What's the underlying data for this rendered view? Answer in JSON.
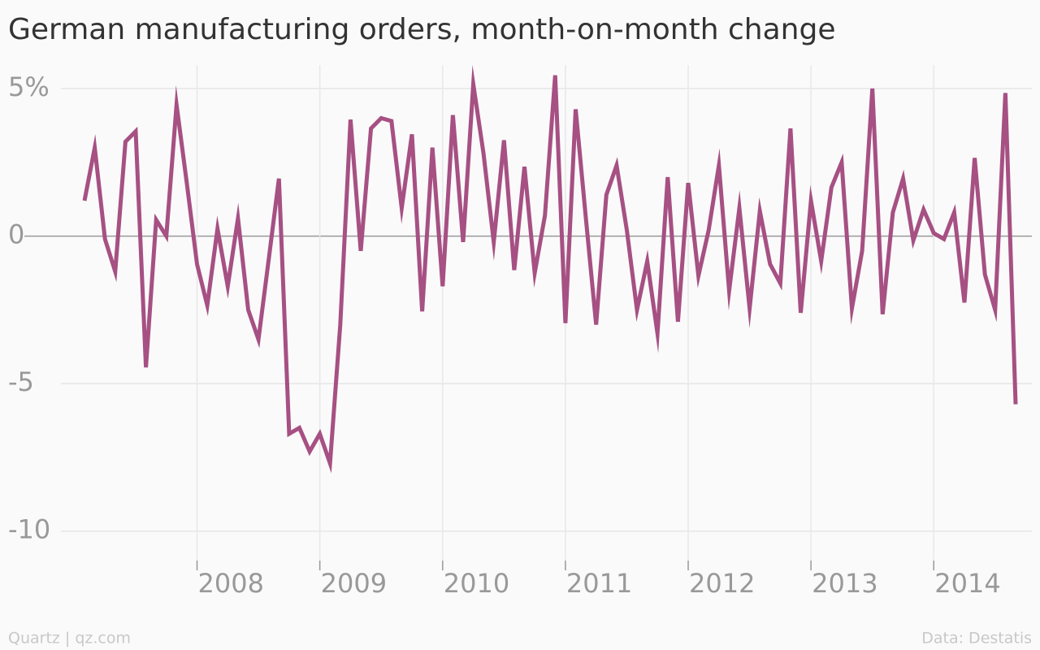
{
  "chart_data": {
    "type": "line",
    "title": "German manufacturing orders, month-on-month change",
    "credit": "Quartz | qz.com",
    "source": "Data: Destatis",
    "x": [
      "2007-02",
      "2007-03",
      "2007-04",
      "2007-05",
      "2007-06",
      "2007-07",
      "2007-08",
      "2007-09",
      "2007-10",
      "2007-11",
      "2007-12",
      "2008-01",
      "2008-02",
      "2008-03",
      "2008-04",
      "2008-05",
      "2008-06",
      "2008-07",
      "2008-08",
      "2008-09",
      "2008-10",
      "2008-11",
      "2008-12",
      "2009-01",
      "2009-02",
      "2009-03",
      "2009-04",
      "2009-05",
      "2009-06",
      "2009-07",
      "2009-08",
      "2009-09",
      "2009-10",
      "2009-11",
      "2009-12",
      "2010-01",
      "2010-02",
      "2010-03",
      "2010-04",
      "2010-05",
      "2010-06",
      "2010-07",
      "2010-08",
      "2010-09",
      "2010-10",
      "2010-11",
      "2010-12",
      "2011-01",
      "2011-02",
      "2011-03",
      "2011-04",
      "2011-05",
      "2011-06",
      "2011-07",
      "2011-08",
      "2011-09",
      "2011-10",
      "2011-11",
      "2011-12",
      "2012-01",
      "2012-02",
      "2012-03",
      "2012-04",
      "2012-05",
      "2012-06",
      "2012-07",
      "2012-08",
      "2012-09",
      "2012-10",
      "2012-11",
      "2012-12",
      "2013-01",
      "2013-02",
      "2013-03",
      "2013-04",
      "2013-05",
      "2013-06",
      "2013-07",
      "2013-08",
      "2013-09",
      "2013-10",
      "2013-11",
      "2013-12",
      "2014-01",
      "2014-02",
      "2014-03",
      "2014-04",
      "2014-05",
      "2014-06",
      "2014-07",
      "2014-08",
      "2014-09"
    ],
    "series": [
      {
        "name": "Month-on-month change",
        "color": "#a65083",
        "values": [
          1.2,
          3.0,
          -0.1,
          -1.2,
          3.2,
          3.55,
          -4.45,
          0.55,
          0.0,
          4.45,
          1.8,
          -0.95,
          -2.35,
          0.25,
          -1.7,
          0.6,
          -2.5,
          -3.5,
          -0.8,
          1.95,
          -6.7,
          -6.5,
          -7.3,
          -6.7,
          -7.7,
          -3.0,
          3.95,
          -0.5,
          3.65,
          4.0,
          3.9,
          0.95,
          3.45,
          -2.55,
          3.0,
          -1.7,
          4.1,
          -0.2,
          5.15,
          2.8,
          -0.2,
          3.25,
          -1.15,
          2.35,
          -1.25,
          0.7,
          5.45,
          -2.95,
          4.3,
          0.6,
          -3.0,
          1.4,
          2.4,
          0.2,
          -2.5,
          -0.85,
          -3.3,
          2.0,
          -2.9,
          1.8,
          -1.35,
          0.2,
          2.4,
          -1.85,
          0.95,
          -2.45,
          0.85,
          -0.95,
          -1.6,
          3.65,
          -2.6,
          1.2,
          -0.85,
          1.65,
          2.5,
          -2.45,
          -0.5,
          5.0,
          -2.65,
          0.8,
          1.95,
          -0.15,
          0.9,
          0.1,
          -0.1,
          0.8,
          -2.25,
          2.65,
          -1.3,
          -2.5,
          4.85,
          -5.7
        ]
      }
    ],
    "xticks": [
      {
        "value": "2008-01",
        "label": "2008"
      },
      {
        "value": "2009-01",
        "label": "2009"
      },
      {
        "value": "2010-01",
        "label": "2010"
      },
      {
        "value": "2011-01",
        "label": "2011"
      },
      {
        "value": "2012-01",
        "label": "2012"
      },
      {
        "value": "2013-01",
        "label": "2013"
      },
      {
        "value": "2014-01",
        "label": "2014"
      }
    ],
    "xlim": [
      "2007-02",
      "2014-09"
    ],
    "ylim": [
      -11,
      5.8
    ],
    "yticks": [
      {
        "value": 5,
        "label": "5%"
      },
      0,
      -5,
      -10
    ],
    "grid": true
  }
}
